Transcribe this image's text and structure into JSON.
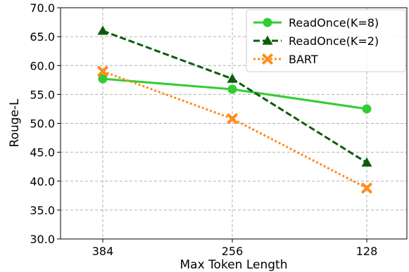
{
  "chart_data": {
    "type": "line",
    "categories": [
      "384",
      "256",
      "128"
    ],
    "xlabel": "Max Token Length",
    "ylabel": "Rouge-L",
    "ylim": [
      30.0,
      70.0
    ],
    "yticks": [
      "30.0",
      "35.0",
      "40.0",
      "45.0",
      "50.0",
      "55.0",
      "60.0",
      "65.0",
      "70.0"
    ],
    "grid": true,
    "legend_position": "top-right",
    "series": [
      {
        "name": "ReadOnce(K=8)",
        "values": [
          57.7,
          55.9,
          52.5
        ],
        "color": "#32cd32",
        "line": "solid",
        "marker": "circle"
      },
      {
        "name": "ReadOnce(K=2)",
        "values": [
          66.0,
          57.7,
          43.2
        ],
        "color": "#0b5d0b",
        "line": "dashed",
        "marker": "triangle"
      },
      {
        "name": "BART",
        "values": [
          59.0,
          50.8,
          38.8
        ],
        "color": "#ff8c1a",
        "line": "dotted",
        "marker": "x"
      }
    ]
  }
}
